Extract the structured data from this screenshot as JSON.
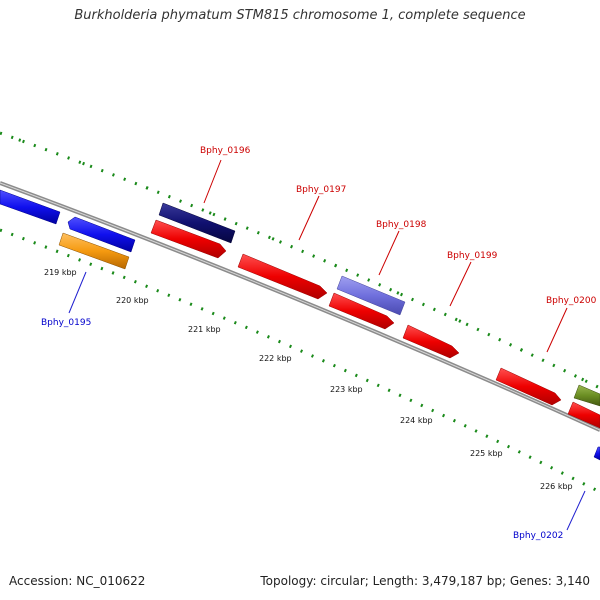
{
  "title": "Burkholderia phymatum STM815 chromosome 1, complete sequence",
  "footer": {
    "accession": "Accession: NC_010622",
    "topology": "Topology: circular; Length: 3,479,187 bp; Genes: 3,140"
  },
  "colors": {
    "backbone": "#8a8a8a",
    "ruler": "#1a8a1a",
    "gene_label_red": "#cc0000",
    "gene_label_blue": "#0000cc",
    "red_gene": "#ee0000",
    "blue_gene": "#1010ee",
    "navy_gene": "#101070",
    "purple_gene": "#7070dd",
    "orange_gene": "#f59a10",
    "olive_gene": "#6b8e23"
  },
  "ticks": [
    "219 kbp",
    "220 kbp",
    "221 kbp",
    "222 kbp",
    "223 kbp",
    "224 kbp",
    "225 kbp",
    "226 kbp"
  ],
  "gene_labels": [
    {
      "id": "bphy-0195",
      "text": "Bphy_0195",
      "color": "blue"
    },
    {
      "id": "bphy-0196",
      "text": "Bphy_0196",
      "color": "red"
    },
    {
      "id": "bphy-0197",
      "text": "Bphy_0197",
      "color": "red"
    },
    {
      "id": "bphy-0198",
      "text": "Bphy_0198",
      "color": "red"
    },
    {
      "id": "bphy-0199",
      "text": "Bphy_0199",
      "color": "red"
    },
    {
      "id": "bphy-0200",
      "text": "Bphy_0200",
      "color": "red"
    },
    {
      "id": "bphy-0202",
      "text": "Bphy_0202",
      "color": "blue"
    }
  ]
}
